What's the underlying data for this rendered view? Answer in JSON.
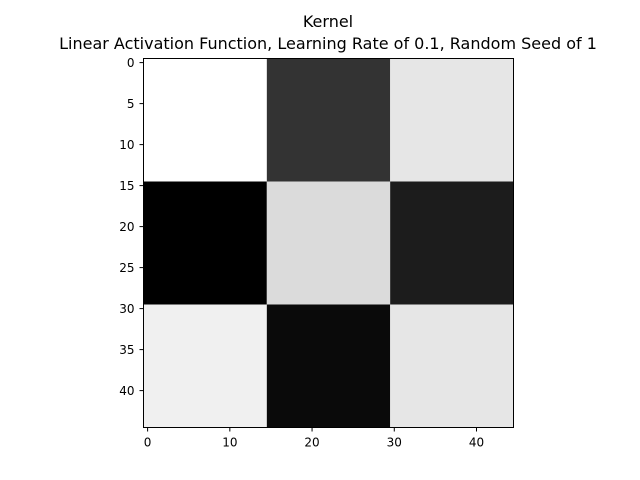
{
  "chart_data": {
    "type": "heatmap",
    "title": "Kernel",
    "subtitle": "Linear Activation Function, Learning Rate of 0.1, Random Seed of 1",
    "xlabel": "",
    "ylabel": "",
    "colormap": "gray",
    "grid": false,
    "xlim": [
      -0.5,
      44.5
    ],
    "ylim": [
      44.5,
      -0.5
    ],
    "x_ticks": [
      0,
      10,
      20,
      30,
      40
    ],
    "y_ticks": [
      0,
      5,
      10,
      15,
      20,
      25,
      30,
      35,
      40
    ],
    "block_size": 15,
    "rows": 3,
    "cols": 3,
    "intensity": [
      [
        1.0,
        0.2,
        0.9
      ],
      [
        0.0,
        0.86,
        0.11
      ],
      [
        0.94,
        0.04,
        0.9
      ]
    ]
  }
}
